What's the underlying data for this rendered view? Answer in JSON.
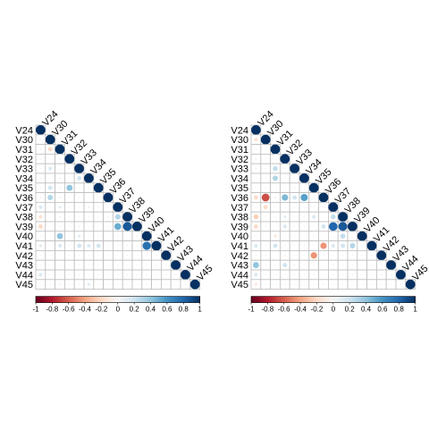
{
  "chart_data": [
    {
      "type": "heatmap",
      "variables": [
        "V24",
        "V30",
        "V31",
        "V32",
        "V33",
        "V34",
        "V35",
        "V36",
        "V37",
        "V38",
        "V39",
        "V40",
        "V41",
        "V42",
        "V43",
        "V44",
        "V45"
      ],
      "lower_triangle": [
        [
          1
        ],
        [
          0.02,
          1
        ],
        [
          -0.05,
          -0.2,
          1
        ],
        [
          0.03,
          0.02,
          0.04,
          1
        ],
        [
          0.02,
          0.15,
          0.02,
          0.03,
          1
        ],
        [
          0.04,
          0.02,
          -0.05,
          0.02,
          0.2,
          1
        ],
        [
          0.03,
          0.2,
          0.03,
          0.4,
          0.02,
          0.02,
          1
        ],
        [
          -0.05,
          0.3,
          -0.05,
          0.02,
          0.03,
          0.02,
          0.02,
          1
        ],
        [
          0.15,
          0.02,
          0.1,
          0.03,
          0.02,
          -0.05,
          0.03,
          0.02,
          1
        ],
        [
          -0.15,
          0.02,
          0.05,
          0.03,
          0.02,
          0.03,
          0.02,
          0.03,
          0.3,
          1
        ],
        [
          -0.2,
          0.02,
          0.03,
          0.02,
          0.04,
          0.02,
          0.02,
          0.03,
          0.5,
          0.85,
          1
        ],
        [
          0.03,
          0.02,
          0.4,
          0.02,
          0.1,
          0.02,
          0.03,
          0.02,
          0.03,
          0.02,
          0.03,
          1
        ],
        [
          0.1,
          0.02,
          0.15,
          0.03,
          0.2,
          0.15,
          0.2,
          0.03,
          0.02,
          0.03,
          0.02,
          0.75,
          1
        ],
        [
          0.02,
          0.03,
          0.02,
          0.03,
          0.02,
          0.03,
          0.02,
          0.03,
          0.02,
          0.03,
          0.02,
          0.03,
          0.02,
          1
        ],
        [
          0.03,
          0.02,
          0.03,
          0.02,
          0.03,
          0.02,
          0.03,
          0.02,
          0.03,
          0.02,
          0.03,
          0.02,
          0.03,
          0.02,
          1
        ],
        [
          0.15,
          0.02,
          0.03,
          0.02,
          0.03,
          0.02,
          0.03,
          0.02,
          0.03,
          0.02,
          0.03,
          0.02,
          0.03,
          0.02,
          0.03,
          1
        ],
        [
          0.02,
          0.03,
          0.05,
          0.02,
          0.03,
          0.1,
          0.02,
          0.03,
          0.02,
          0.03,
          0.02,
          0.03,
          0.02,
          0.03,
          0.02,
          0.03,
          1
        ]
      ],
      "color_scale": {
        "min": -1,
        "max": 1,
        "low_color": "#67001f",
        "mid_color": "#f7f7f7",
        "high_color": "#053061"
      },
      "colorbar_ticks": [
        "-1",
        "-0.8",
        "-0.6",
        "-0.4",
        "-0.2",
        "0",
        "0.2",
        "0.4",
        "0.6",
        "0.8",
        "1"
      ]
    },
    {
      "type": "heatmap",
      "variables": [
        "V24",
        "V30",
        "V31",
        "V32",
        "V33",
        "V34",
        "V35",
        "V36",
        "V37",
        "V38",
        "V39",
        "V40",
        "V41",
        "V42",
        "V43",
        "V44",
        "V45"
      ],
      "lower_triangle": [
        [
          1
        ],
        [
          -0.15,
          1
        ],
        [
          0.03,
          0.02,
          1
        ],
        [
          -0.05,
          0.02,
          0.03,
          1
        ],
        [
          0.05,
          0.03,
          0.25,
          0.02,
          1
        ],
        [
          0.03,
          0.02,
          0.3,
          0.03,
          0.02,
          1
        ],
        [
          0.02,
          0.03,
          0.02,
          0.02,
          0.03,
          0.02,
          1
        ],
        [
          -0.2,
          -0.65,
          0.05,
          0.45,
          0.2,
          0.55,
          0.02,
          1
        ],
        [
          0.02,
          -0.2,
          0.03,
          0.02,
          0.03,
          0.02,
          0.03,
          0.02,
          1
        ],
        [
          -0.25,
          0.02,
          0.03,
          0.1,
          0.02,
          0.03,
          0.15,
          0.02,
          0.25,
          1
        ],
        [
          -0.2,
          0.03,
          0.02,
          0.15,
          0.02,
          0.03,
          0.02,
          0.2,
          0.8,
          0.85,
          1
        ],
        [
          0.03,
          0.02,
          -0.1,
          0.02,
          0.03,
          0.02,
          0.03,
          0.02,
          0.03,
          0.25,
          0.02,
          1
        ],
        [
          0.15,
          0.02,
          0.2,
          0.03,
          0.02,
          0.03,
          0.02,
          -0.45,
          0.15,
          0.2,
          0.3,
          0.02,
          1
        ],
        [
          0.02,
          0.03,
          0.02,
          0.03,
          0.02,
          0.03,
          -0.45,
          0.03,
          0.02,
          0.03,
          0.02,
          0.03,
          0.02,
          1
        ],
        [
          0.4,
          0.02,
          0.03,
          0.2,
          0.03,
          0.02,
          0.03,
          0.02,
          0.03,
          0.02,
          0.03,
          0.02,
          0.03,
          0.02,
          1
        ],
        [
          0.15,
          0.02,
          0.03,
          0.02,
          0.03,
          0.02,
          0.03,
          0.02,
          0.03,
          0.02,
          0.03,
          0.02,
          0.03,
          0.02,
          0.03,
          1
        ],
        [
          -0.1,
          0.03,
          0.02,
          0.03,
          0.02,
          0.03,
          0.02,
          0.03,
          0.02,
          0.03,
          0.02,
          0.03,
          0.02,
          0.03,
          0.02,
          0.03,
          1
        ]
      ],
      "color_scale": {
        "min": -1,
        "max": 1,
        "low_color": "#67001f",
        "mid_color": "#f7f7f7",
        "high_color": "#053061"
      },
      "colorbar_ticks": [
        "-1",
        "-0.8",
        "-0.6",
        "-0.4",
        "-0.2",
        "0",
        "0.2",
        "0.4",
        "0.6",
        "0.8",
        "1"
      ]
    }
  ]
}
